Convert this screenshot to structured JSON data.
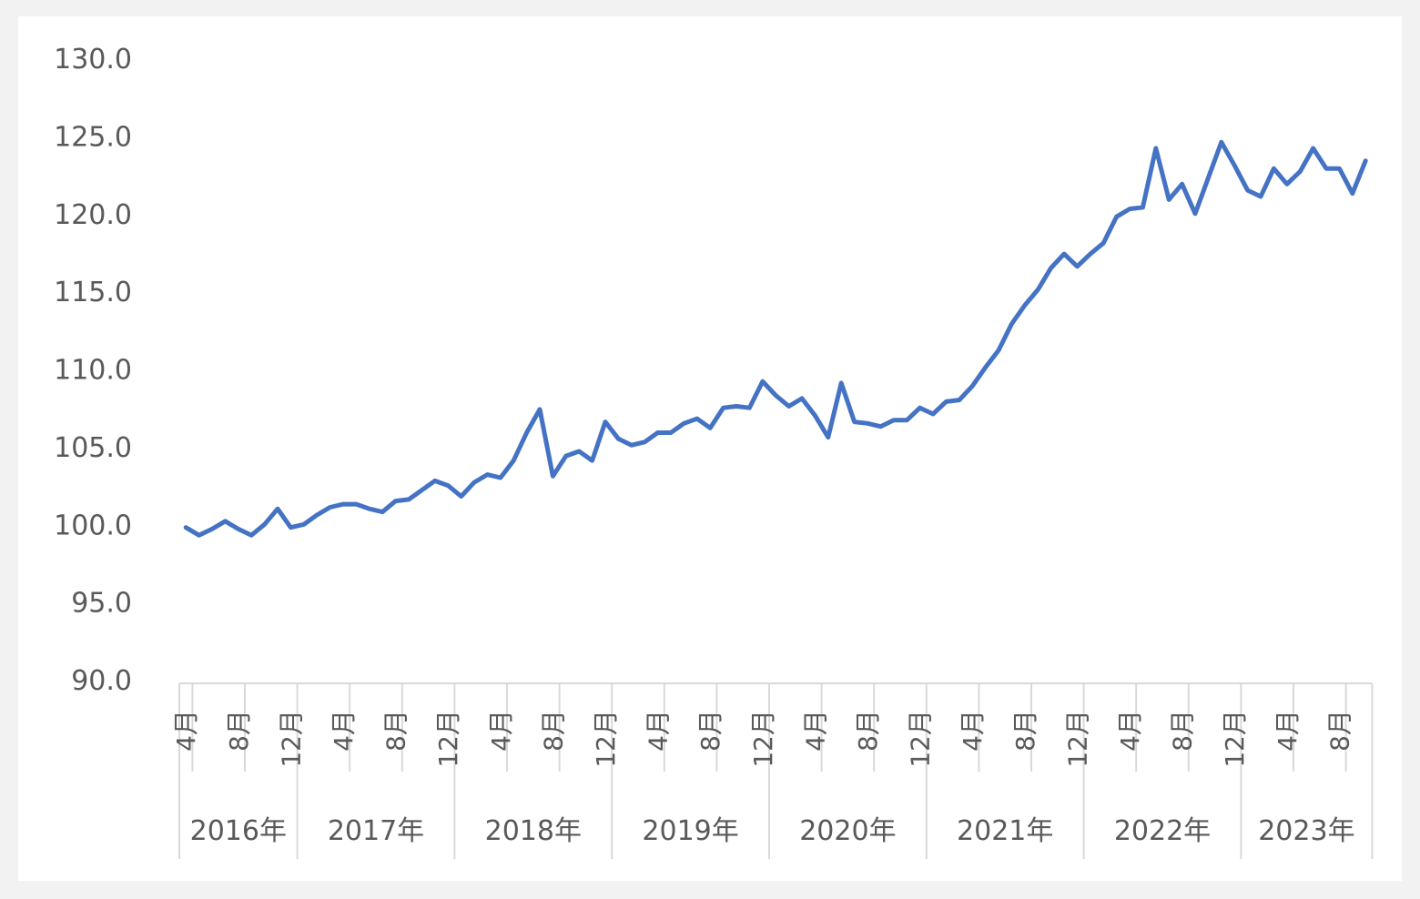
{
  "chart_data": {
    "type": "line",
    "title": "",
    "xlabel": "",
    "ylabel": "",
    "ylim": [
      90,
      130
    ],
    "y_ticks": [
      "90.0",
      "95.0",
      "100.0",
      "105.0",
      "110.0",
      "115.0",
      "120.0",
      "125.0",
      "130.0"
    ],
    "grid": false,
    "legend": "none",
    "line_color": "#4472c4",
    "axis_color": "#d9d9d9",
    "start": "2016-04",
    "month_ticks": [
      {
        "index": 0,
        "label": "4月"
      },
      {
        "index": 4,
        "label": "8月"
      },
      {
        "index": 8,
        "label": "12月"
      },
      {
        "index": 12,
        "label": "4月"
      },
      {
        "index": 16,
        "label": "8月"
      },
      {
        "index": 20,
        "label": "12月"
      },
      {
        "index": 24,
        "label": "4月"
      },
      {
        "index": 28,
        "label": "8月"
      },
      {
        "index": 32,
        "label": "12月"
      },
      {
        "index": 36,
        "label": "4月"
      },
      {
        "index": 40,
        "label": "8月"
      },
      {
        "index": 44,
        "label": "12月"
      },
      {
        "index": 48,
        "label": "4月"
      },
      {
        "index": 52,
        "label": "8月"
      },
      {
        "index": 56,
        "label": "12月"
      },
      {
        "index": 60,
        "label": "4月"
      },
      {
        "index": 64,
        "label": "8月"
      },
      {
        "index": 68,
        "label": "12月"
      },
      {
        "index": 72,
        "label": "4月"
      },
      {
        "index": 76,
        "label": "8月"
      },
      {
        "index": 80,
        "label": "12月"
      },
      {
        "index": 84,
        "label": "4月"
      },
      {
        "index": 88,
        "label": "8月"
      }
    ],
    "years": [
      {
        "label": "2016年",
        "start": 0,
        "end": 8
      },
      {
        "label": "2017年",
        "start": 9,
        "end": 20
      },
      {
        "label": "2018年",
        "start": 21,
        "end": 32
      },
      {
        "label": "2019年",
        "start": 33,
        "end": 44
      },
      {
        "label": "2020年",
        "start": 45,
        "end": 56
      },
      {
        "label": "2021年",
        "start": 57,
        "end": 68
      },
      {
        "label": "2022年",
        "start": 69,
        "end": 80
      },
      {
        "label": "2023年",
        "start": 81,
        "end": 90
      }
    ],
    "series": [
      {
        "values": [
          99.8,
          99.3,
          99.7,
          100.2,
          99.7,
          99.3,
          100.0,
          101.0,
          99.8,
          100.0,
          100.6,
          101.1,
          101.3,
          101.3,
          101.0,
          100.8,
          101.5,
          101.6,
          102.2,
          102.8,
          102.5,
          101.8,
          102.7,
          103.2,
          103.0,
          104.1,
          105.9,
          107.4,
          103.1,
          104.4,
          104.7,
          104.1,
          106.6,
          105.5,
          105.1,
          105.3,
          105.9,
          105.9,
          106.5,
          106.8,
          106.2,
          107.5,
          107.6,
          107.5,
          109.2,
          108.3,
          107.6,
          108.1,
          107.0,
          105.6,
          109.1,
          106.6,
          106.5,
          106.3,
          106.7,
          106.7,
          107.5,
          107.1,
          107.9,
          108.0,
          108.9,
          110.1,
          111.2,
          112.9,
          114.1,
          115.1,
          116.5,
          117.4,
          116.6,
          117.4,
          118.1,
          119.8,
          120.3,
          120.4,
          124.2,
          120.9,
          121.9,
          120.0,
          122.3,
          124.6,
          123.1,
          121.5,
          121.1,
          122.9,
          121.9,
          122.7,
          124.2,
          122.9,
          122.9,
          121.3,
          123.4
        ]
      }
    ]
  }
}
